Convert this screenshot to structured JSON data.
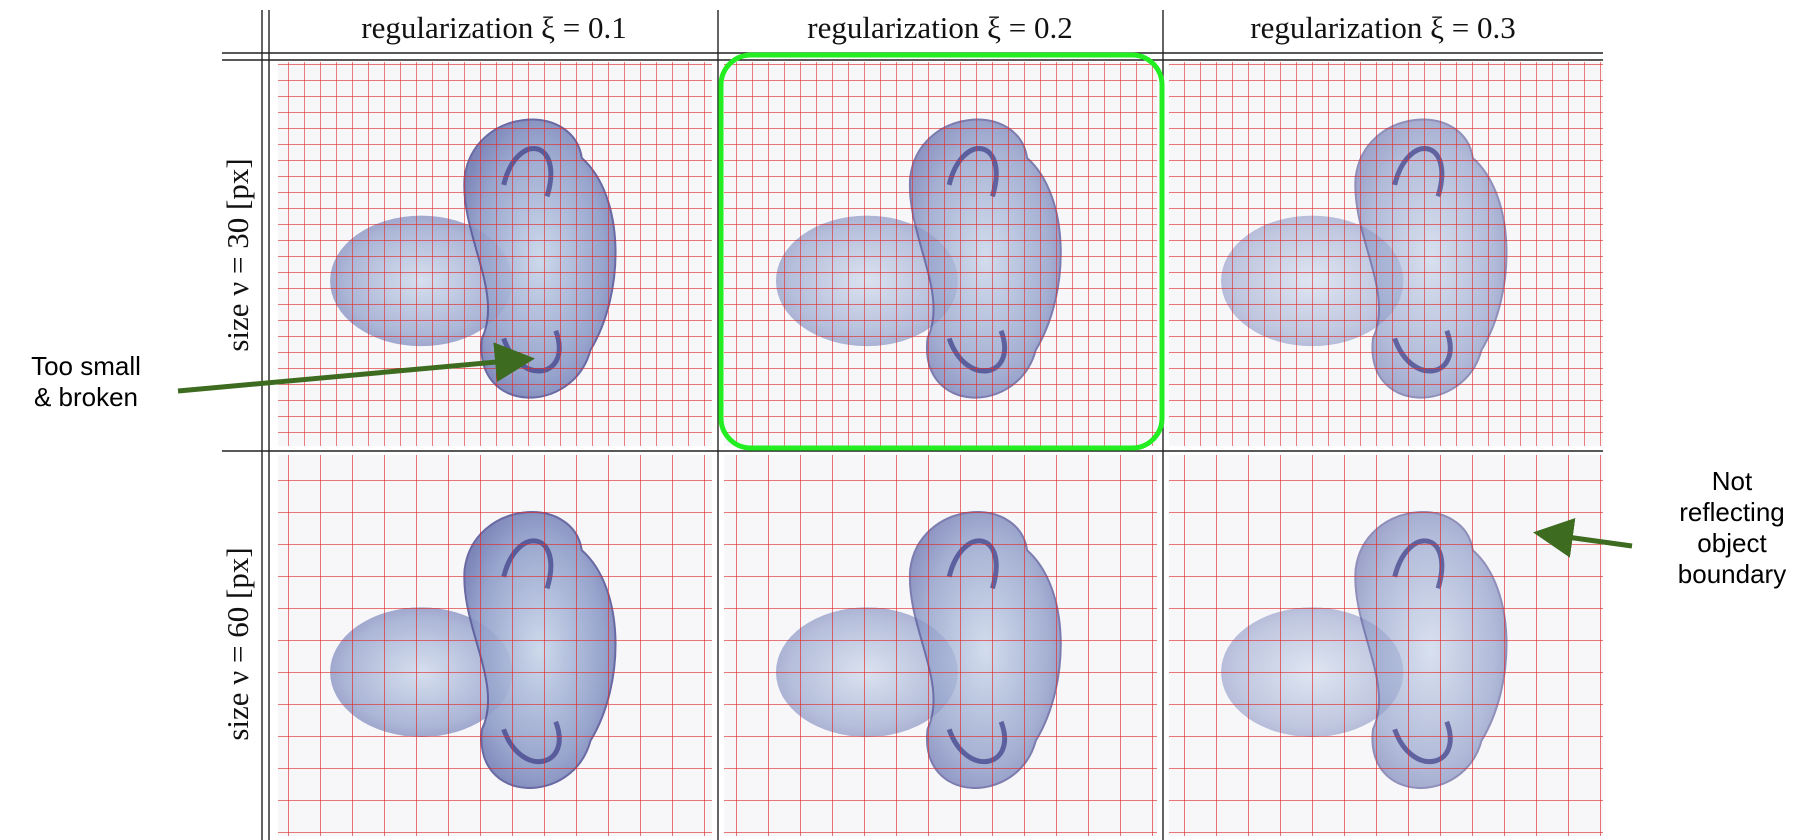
{
  "figure": {
    "columns": [
      "regularization ξ = 0.1",
      "regularization ξ = 0.2",
      "regularization ξ = 0.3"
    ],
    "rows": [
      "size ν = 30 [px]",
      "size ν = 60 [px]"
    ],
    "annotations": [
      {
        "lines": [
          "Too small",
          "& broken"
        ]
      },
      {
        "lines": [
          "Not",
          "reflecting",
          "object",
          "boundary"
        ]
      }
    ]
  }
}
